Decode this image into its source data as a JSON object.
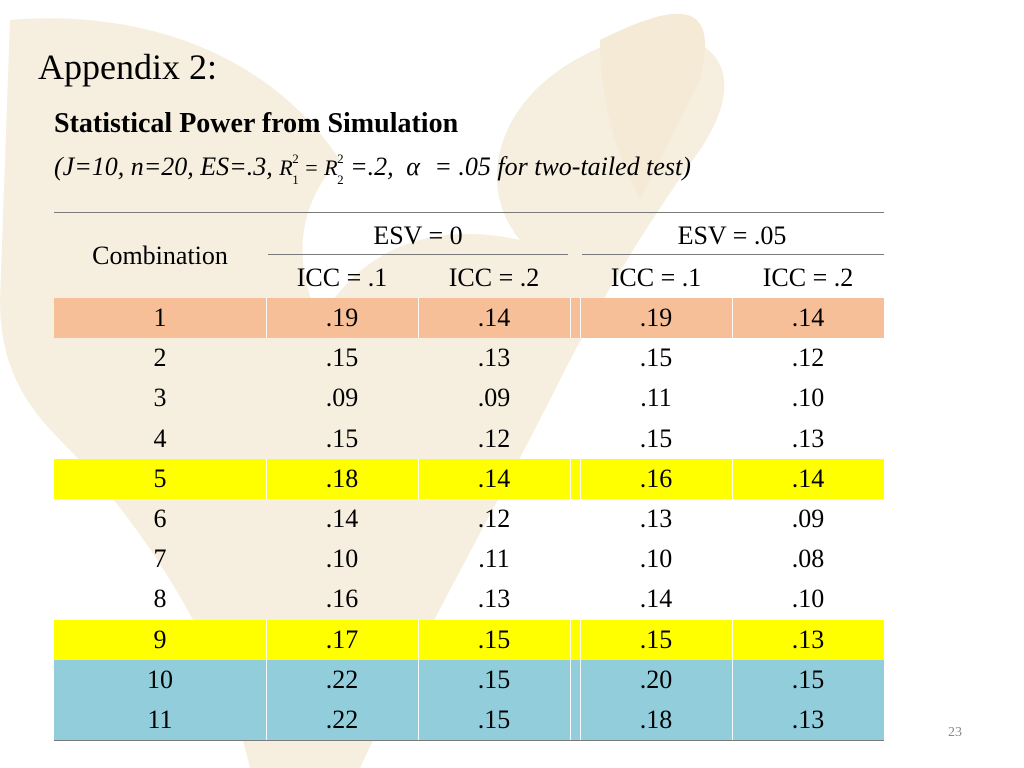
{
  "slide": {
    "heading": "Appendix 2:",
    "subtitle": "Statistical Power from Simulation",
    "params": {
      "prefix": "(J=10, n=20, ES=.3,",
      "r_symbol": "R",
      "r_sup": "2",
      "r1_sub": "1",
      "equals": "=",
      "r2_sub": "2",
      "r_value": "=.2,",
      "alpha": "α",
      "suffix": "= .05 for two-tailed test)"
    },
    "page_number": "23"
  },
  "table": {
    "combo_header": "Combination",
    "groups": [
      "ESV = 0",
      "ESV = .05"
    ],
    "subheaders": [
      "ICC = .1",
      "ICC = .2",
      "ICC = .1",
      "ICC = .2"
    ],
    "rows": [
      {
        "combo": "1",
        "v": [
          ".19",
          ".14",
          ".19",
          ".14"
        ],
        "highlight": "peach"
      },
      {
        "combo": "2",
        "v": [
          ".15",
          ".13",
          ".15",
          ".12"
        ],
        "highlight": "white"
      },
      {
        "combo": "3",
        "v": [
          ".09",
          ".09",
          ".11",
          ".10"
        ],
        "highlight": "white"
      },
      {
        "combo": "4",
        "v": [
          ".15",
          ".12",
          ".15",
          ".13"
        ],
        "highlight": "white"
      },
      {
        "combo": "5",
        "v": [
          ".18",
          ".14",
          ".16",
          ".14"
        ],
        "highlight": "yellow"
      },
      {
        "combo": "6",
        "v": [
          ".14",
          ".12",
          ".13",
          ".09"
        ],
        "highlight": "white"
      },
      {
        "combo": "7",
        "v": [
          ".10",
          ".11",
          ".10",
          ".08"
        ],
        "highlight": "white"
      },
      {
        "combo": "8",
        "v": [
          ".16",
          ".13",
          ".14",
          ".10"
        ],
        "highlight": "white"
      },
      {
        "combo": "9",
        "v": [
          ".17",
          ".15",
          ".15",
          ".13"
        ],
        "highlight": "yellow"
      },
      {
        "combo": "10",
        "v": [
          ".22",
          ".15",
          ".20",
          ".15"
        ],
        "highlight": "blue"
      },
      {
        "combo": "11",
        "v": [
          ".22",
          ".15",
          ".18",
          ".13"
        ],
        "highlight": "blue"
      }
    ]
  },
  "colors": {
    "peach": "#f7bf97",
    "yellow": "#ffff00",
    "blue": "#92cddc",
    "watermark": "#f6efe0"
  }
}
